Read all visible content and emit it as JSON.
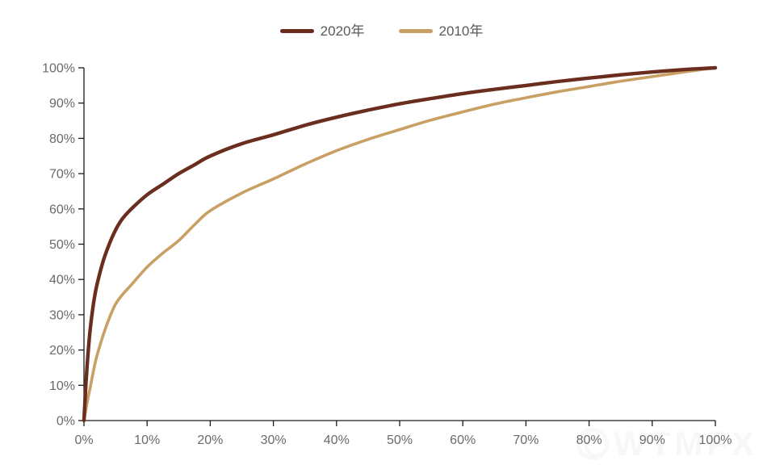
{
  "legend": {
    "items": [
      {
        "label": "2020年",
        "color": "#6b2d1e"
      },
      {
        "label": "2010年",
        "color": "#c9a063"
      }
    ]
  },
  "watermark": {
    "text": "WTMFX"
  },
  "chart_data": {
    "type": "line",
    "title": "",
    "xlabel": "",
    "ylabel": "",
    "xlim": [
      0,
      100
    ],
    "ylim": [
      0,
      100
    ],
    "grid": false,
    "legend_position": "top-center",
    "x_tick_labels": [
      "0%",
      "10%",
      "20%",
      "30%",
      "40%",
      "50%",
      "60%",
      "70%",
      "80%",
      "90%",
      "100%"
    ],
    "y_tick_labels": [
      "0%",
      "10%",
      "20%",
      "30%",
      "40%",
      "50%",
      "60%",
      "70%",
      "80%",
      "90%",
      "100%"
    ],
    "axis_color": "#1a1a1a",
    "tick_label_color": "#6a6a6a",
    "x": [
      0,
      0.3,
      0.6,
      1,
      1.5,
      2,
      3,
      4,
      5,
      6,
      7.5,
      10,
      12.5,
      15,
      17.5,
      20,
      25,
      30,
      35,
      40,
      45,
      50,
      55,
      60,
      65,
      70,
      75,
      80,
      85,
      90,
      95,
      100
    ],
    "series": [
      {
        "name": "2020年",
        "color": "#6b2d1e",
        "values": [
          0,
          10,
          18,
          26,
          33,
          38,
          45,
          50,
          54,
          57,
          60,
          64,
          67,
          70,
          72.5,
          75,
          78.5,
          81,
          83.7,
          86,
          88,
          89.8,
          91.3,
          92.7,
          93.9,
          95,
          96.1,
          97.1,
          98,
          98.8,
          99.5,
          100
        ]
      },
      {
        "name": "2010年",
        "color": "#c9a063",
        "values": [
          0,
          3,
          6,
          9.5,
          14,
          18,
          24,
          29,
          33,
          35.5,
          38.5,
          43.5,
          47.5,
          51,
          55.5,
          59.5,
          64.5,
          68.5,
          72.7,
          76.5,
          79.7,
          82.5,
          85.2,
          87.5,
          89.7,
          91.5,
          93.2,
          94.7,
          96.2,
          97.5,
          98.8,
          100
        ]
      }
    ]
  }
}
